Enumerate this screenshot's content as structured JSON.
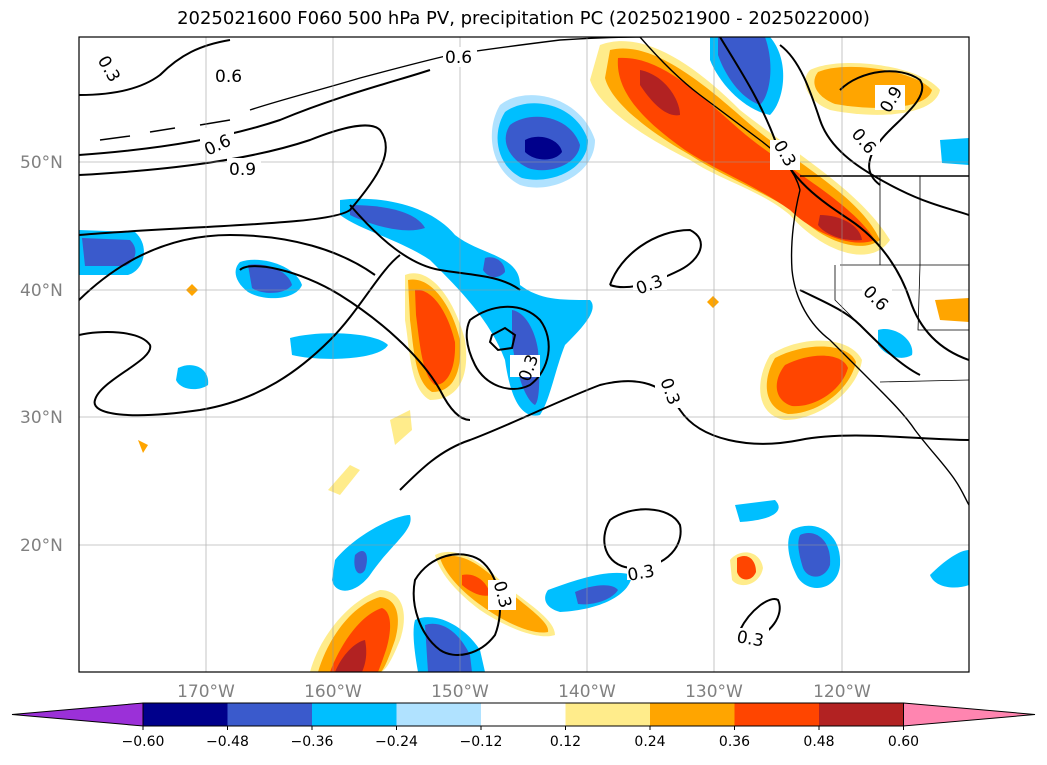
{
  "title": "2025021600 F060 500 hPa PV, precipitation PC (2025021900 - 2025022000)",
  "latitude_labels": [
    "50°N",
    "40°N",
    "30°N",
    "20°N"
  ],
  "longitude_labels": [
    "170°W",
    "160°W",
    "150°W",
    "140°W",
    "130°W",
    "120°W"
  ],
  "pv_contour_labels": [
    "0.3",
    "0.6",
    "0.6",
    "0.6",
    "0.9",
    "0.3",
    "0.3",
    "0.3",
    "0.3",
    "0.6",
    "0.9",
    "0.6",
    "0.3",
    "0.3"
  ],
  "colorbar": {
    "tick_labels": [
      "−0.60",
      "−0.48",
      "−0.36",
      "−0.24",
      "−0.12",
      "0.12",
      "0.24",
      "0.36",
      "0.48",
      "0.60"
    ],
    "colors": {
      "below_min": "#9b30d8",
      "n060": "#00008b",
      "n048": "#3a5acc",
      "n036": "#00bfff",
      "n024": "#b0e2ff",
      "neutral": "#ffffff",
      "p012": "#ffec8b",
      "p024": "#ffa500",
      "p036": "#ff4500",
      "p048": "#b22222",
      "above_max": "#ff85b0"
    }
  }
}
